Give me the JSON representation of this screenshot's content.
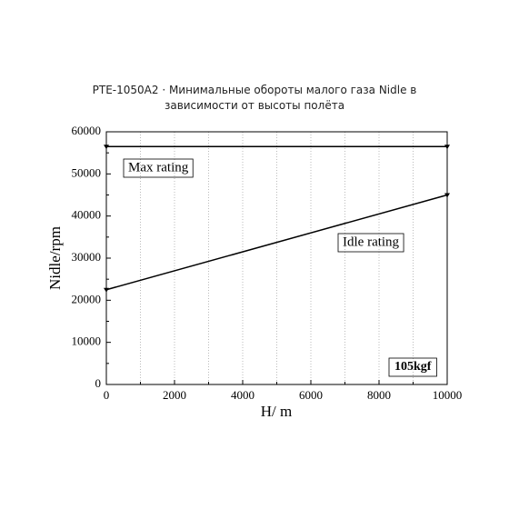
{
  "chart_data": {
    "type": "line",
    "title": "PTE-1050A2 · Минимальные обороты малого газа Nidle в зависимости от высоты полёта",
    "x_label": "H/ m",
    "y_label": "Nidle/rpm",
    "x": [
      0,
      10000
    ],
    "series": [
      {
        "name": "Max rating",
        "color": "#000000",
        "values": [
          56500,
          56500
        ]
      },
      {
        "name": "Idle rating",
        "color": "#000000",
        "values": [
          22500,
          45000
        ]
      }
    ],
    "annotation": "105kgf",
    "xlim": [
      0,
      10000
    ],
    "xticks": [
      0,
      2000,
      4000,
      6000,
      8000,
      10000
    ],
    "ylim": [
      0,
      60000
    ],
    "yticks": [
      0,
      10000,
      20000,
      30000,
      40000,
      50000,
      60000
    ],
    "grid": true
  }
}
